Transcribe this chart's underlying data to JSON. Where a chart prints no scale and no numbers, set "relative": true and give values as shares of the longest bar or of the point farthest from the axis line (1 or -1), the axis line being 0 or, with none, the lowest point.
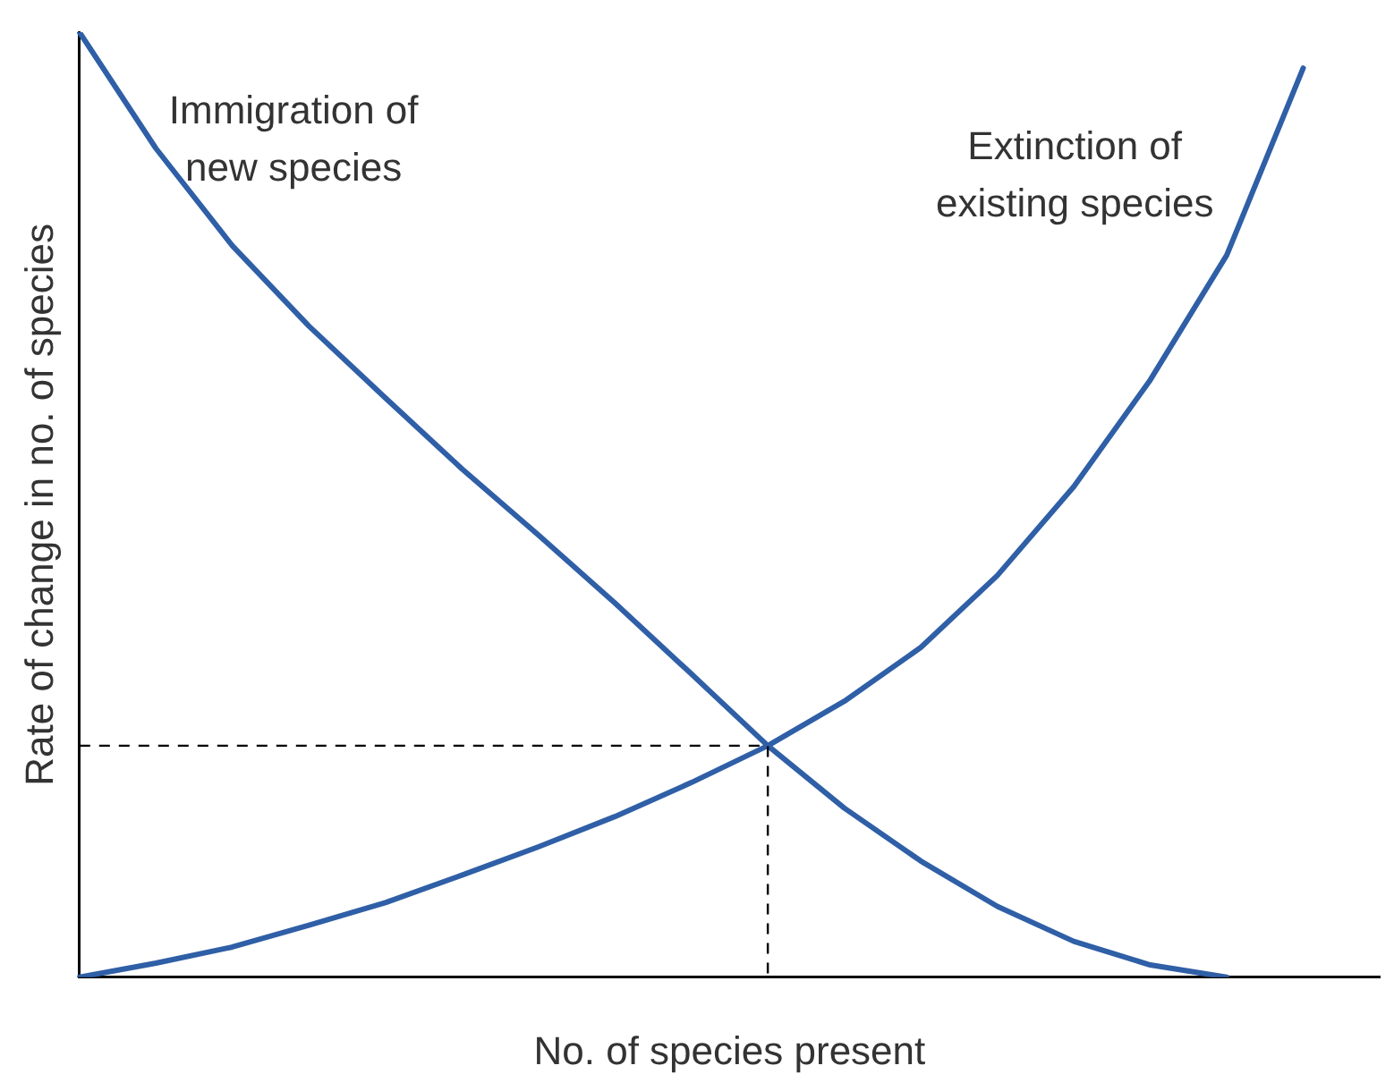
{
  "chart_data": {
    "type": "line",
    "relative": true,
    "xlabel": "No. of species present",
    "ylabel": "Rate of change in no. of species",
    "marker": "none",
    "line_style": "solid",
    "categories": [
      null,
      null,
      null,
      null,
      null,
      null,
      null,
      null,
      null,
      null,
      null,
      null,
      null,
      null,
      null,
      null,
      null,
      null
    ],
    "series": [
      {
        "name": "Immigration of new species",
        "color": "#2f5fa6",
        "values": [
          1.0,
          0.877,
          0.774,
          0.689,
          0.613,
          0.538,
          0.468,
          0.396,
          0.321,
          0.245,
          0.179,
          0.123,
          0.075,
          0.038,
          0.013,
          0,
          null,
          null
        ]
      },
      {
        "name": "Extinction of existing species",
        "color": "#2f5fa6",
        "values": [
          0,
          0.015,
          0.032,
          0.055,
          0.079,
          0.108,
          0.138,
          0.17,
          0.206,
          0.245,
          0.292,
          0.349,
          0.425,
          0.519,
          0.632,
          0.764,
          0.962,
          null
        ]
      }
    ],
    "ref_lines": [
      {
        "axis": "y",
        "value": 0.245,
        "color": "#000000",
        "line_style": "dashed"
      }
    ]
  }
}
